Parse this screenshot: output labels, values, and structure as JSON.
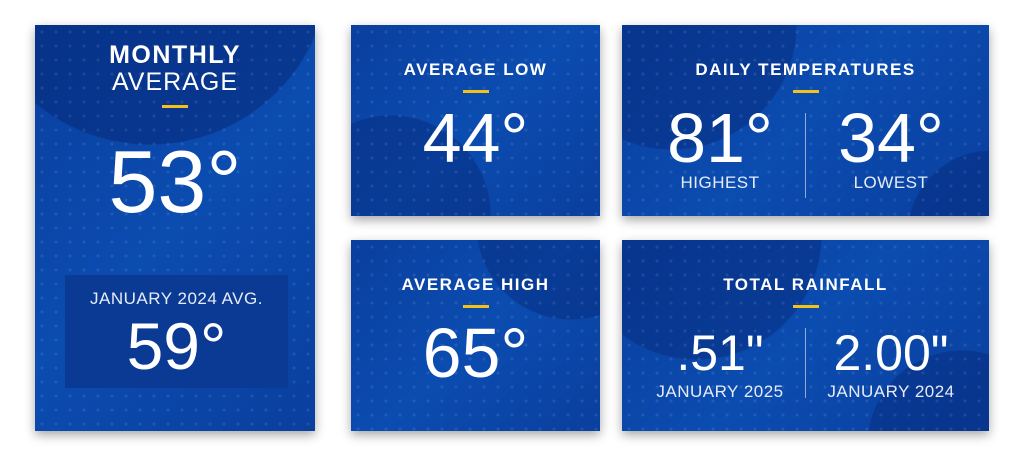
{
  "monthly": {
    "title_bold": "MONTHLY",
    "title_light": "AVERAGE",
    "value": "53°",
    "inner_label": "JANUARY 2024 AVG.",
    "inner_value": "59°"
  },
  "avg_low": {
    "title": "AVERAGE LOW",
    "value": "44°"
  },
  "avg_high": {
    "title": "AVERAGE HIGH",
    "value": "65°"
  },
  "daily": {
    "title": "DAILY TEMPERATURES",
    "highest_value": "81°",
    "highest_label": "HIGHEST",
    "lowest_value": "34°",
    "lowest_label": "LOWEST"
  },
  "rainfall": {
    "title": "TOTAL RAINFALL",
    "current_value": ".51\"",
    "current_label": "JANUARY 2025",
    "previous_value": "2.00\"",
    "previous_label": "JANUARY 2024"
  },
  "colors": {
    "card": "#0b4cb0",
    "accent": "#f2c21b",
    "inner_box": "#0a3a94"
  }
}
